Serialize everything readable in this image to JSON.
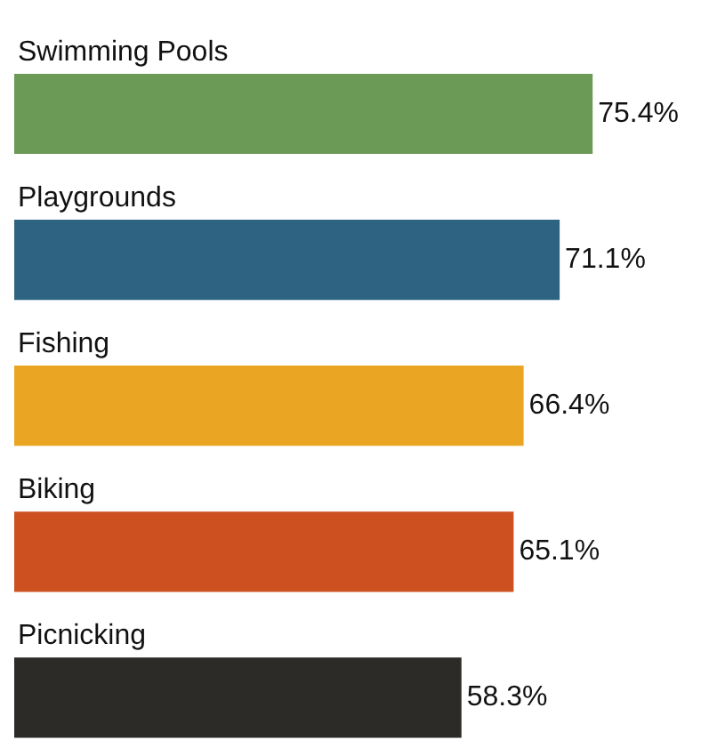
{
  "chart_data": {
    "type": "bar",
    "orientation": "horizontal",
    "categories": [
      "Swimming Pools",
      "Playgrounds",
      "Fishing",
      "Biking",
      "Picnicking"
    ],
    "values": [
      75.4,
      71.1,
      66.4,
      65.1,
      58.3
    ],
    "colors": [
      "#6a9a55",
      "#2e6482",
      "#eaa622",
      "#cc5020",
      "#2d2b28"
    ],
    "value_labels": [
      "75.4%",
      "71.1%",
      "66.4%",
      "65.1%",
      "58.3%"
    ]
  }
}
